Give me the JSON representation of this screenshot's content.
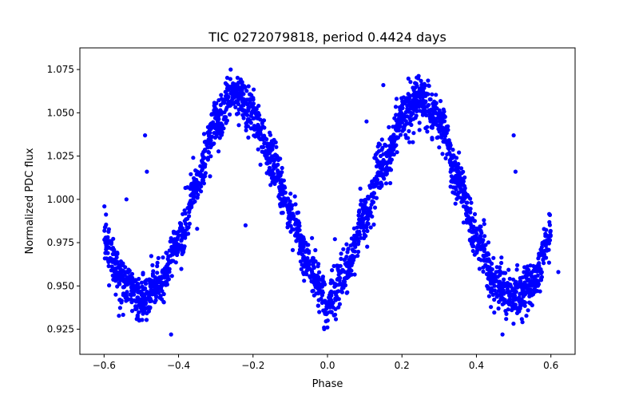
{
  "chart_data": {
    "type": "scatter",
    "title": "TIC 0272079818, period 0.4424 days",
    "xlabel": "Phase",
    "ylabel": "Normalized PDC flux",
    "xlim": [
      -0.665,
      0.665
    ],
    "ylim": [
      0.9105,
      1.0875
    ],
    "xticks": [
      -0.6,
      -0.4,
      -0.2,
      0.0,
      0.2,
      0.4,
      0.6
    ],
    "xtick_labels": [
      "−0.6",
      "−0.4",
      "−0.2",
      "0.0",
      "0.2",
      "0.4",
      "0.6"
    ],
    "yticks": [
      0.925,
      0.95,
      0.975,
      1.0,
      1.025,
      1.05,
      1.075
    ],
    "ytick_labels": [
      "0.925",
      "0.950",
      "0.975",
      "1.000",
      "1.025",
      "1.050",
      "1.075"
    ],
    "grid": false,
    "marker_color": "#0000ff",
    "series": [
      {
        "phase": [
          -0.6,
          -0.55,
          -0.5,
          -0.45,
          -0.4,
          -0.35,
          -0.3,
          -0.25,
          -0.2,
          -0.15,
          -0.1,
          -0.05,
          0.0,
          0.05,
          0.1,
          0.15,
          0.2,
          0.25,
          0.3,
          0.35,
          0.4,
          0.45,
          0.5,
          0.55,
          0.6
        ],
        "flux": [
          0.978,
          0.952,
          0.942,
          0.951,
          0.975,
          1.01,
          1.043,
          1.06,
          1.05,
          1.022,
          0.992,
          0.962,
          0.94,
          0.958,
          0.99,
          1.02,
          1.048,
          1.059,
          1.045,
          1.012,
          0.977,
          0.952,
          0.942,
          0.952,
          0.978
        ],
        "scatter_spread": 0.012
      }
    ],
    "outliers": [
      {
        "x": -0.49,
        "y": 1.037
      },
      {
        "x": -0.485,
        "y": 1.016
      },
      {
        "x": 0.5,
        "y": 1.037
      },
      {
        "x": 0.505,
        "y": 1.016
      },
      {
        "x": 0.105,
        "y": 1.045
      },
      {
        "x": 0.15,
        "y": 1.066
      },
      {
        "x": -0.22,
        "y": 0.985
      },
      {
        "x": 0.02,
        "y": 0.977
      },
      {
        "x": 0.47,
        "y": 0.922
      },
      {
        "x": -0.42,
        "y": 0.922
      },
      {
        "x": -0.54,
        "y": 1.0
      },
      {
        "x": 0.42,
        "y": 0.988
      },
      {
        "x": -0.35,
        "y": 0.983
      },
      {
        "x": -0.26,
        "y": 1.075
      },
      {
        "x": 0.22,
        "y": 1.033
      },
      {
        "x": -0.18,
        "y": 1.02
      },
      {
        "x": 0.3,
        "y": 1.03
      },
      {
        "x": 0.62,
        "y": 0.958
      }
    ]
  }
}
